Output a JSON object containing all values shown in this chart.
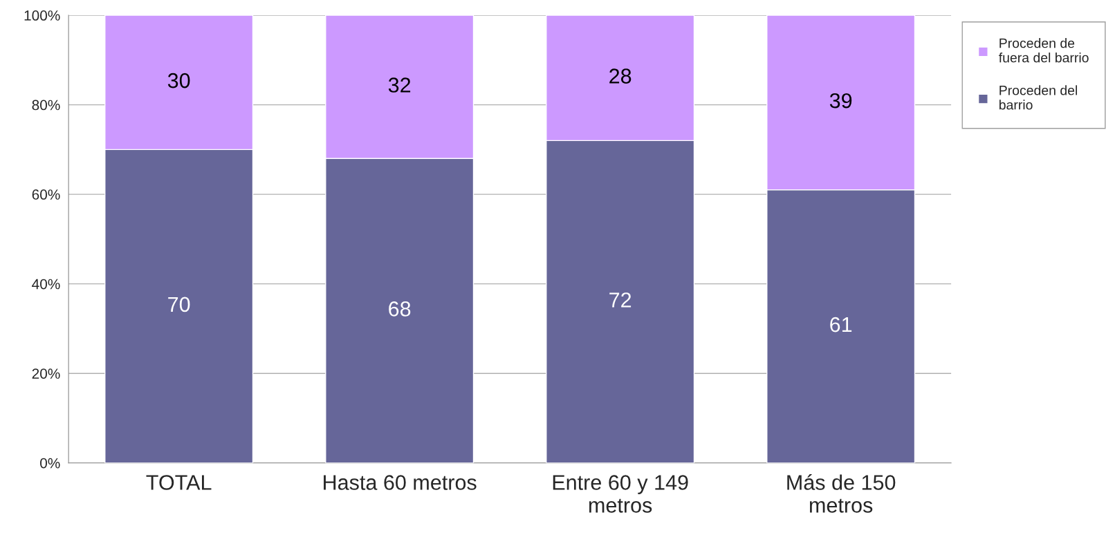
{
  "chart_data": {
    "type": "bar",
    "stacked": true,
    "categories": [
      "TOTAL",
      "Hasta 60 metros",
      "Entre 60 y 149\nmetros",
      "Más de 150\nmetros"
    ],
    "series": [
      {
        "name": "Proceden del\nbarrio",
        "color": "#666699",
        "values": [
          70,
          68,
          72,
          61
        ]
      },
      {
        "name": "Proceden de\nfuera del barrio",
        "color": "#cc99ff",
        "values": [
          30,
          32,
          28,
          39
        ]
      }
    ],
    "ylim": [
      0,
      100
    ],
    "yticks": [
      {
        "value": 0,
        "label": "0%"
      },
      {
        "value": 20,
        "label": "20%"
      },
      {
        "value": 40,
        "label": "40%"
      },
      {
        "value": 60,
        "label": "60%"
      },
      {
        "value": 80,
        "label": "80%"
      },
      {
        "value": 100,
        "label": "100%"
      }
    ],
    "grid": "y",
    "legend": "right",
    "data_labels": true
  }
}
